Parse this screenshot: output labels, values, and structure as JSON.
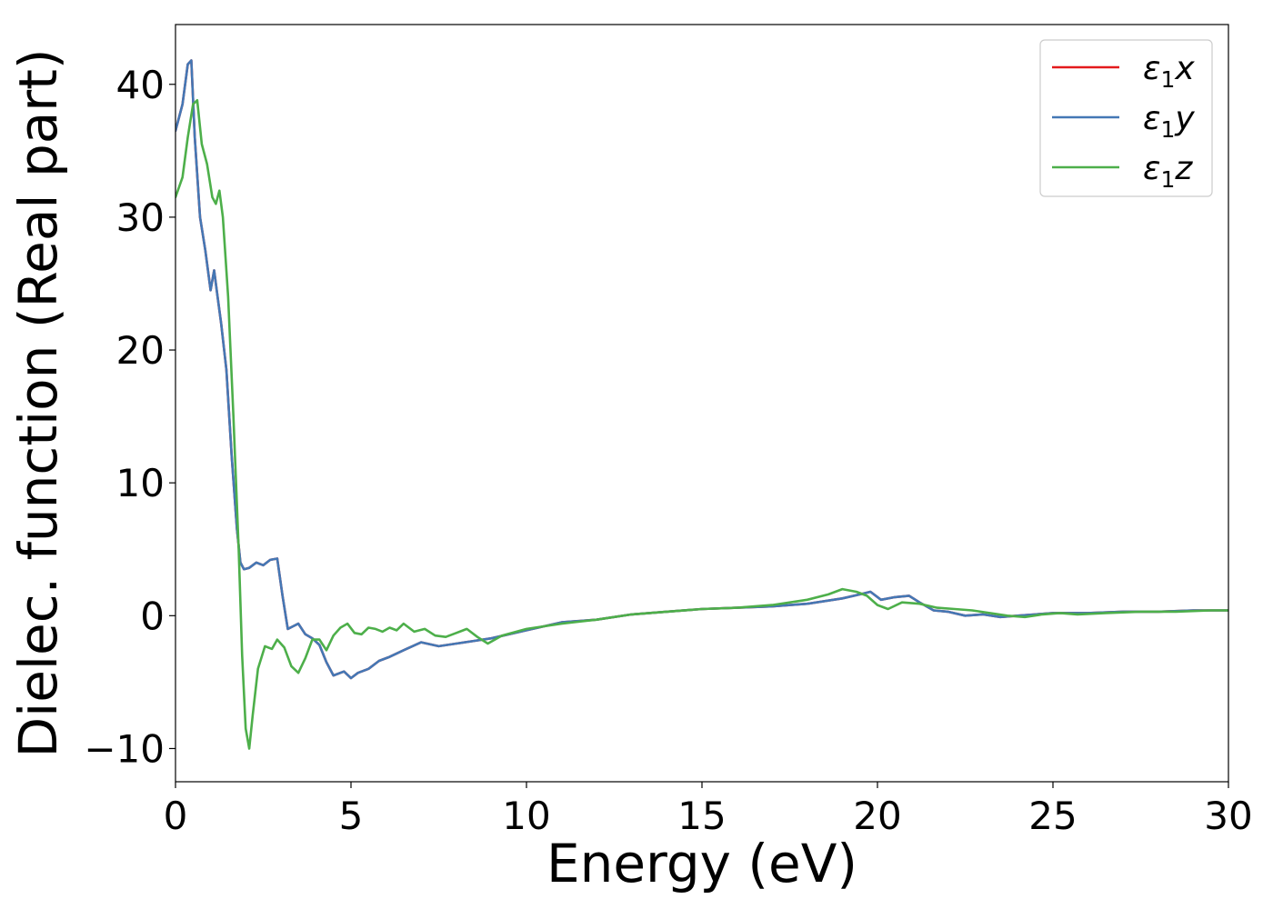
{
  "chart_data": {
    "type": "line",
    "title": "",
    "xlabel": "Energy (eV)",
    "ylabel": "Dielec. function (Real part)",
    "xlim": [
      0,
      30
    ],
    "ylim": [
      -12.5,
      44.5
    ],
    "xticks": [
      0,
      5,
      10,
      15,
      20,
      25,
      30
    ],
    "xtick_labels": [
      "0",
      "5",
      "10",
      "15",
      "20",
      "25",
      "30"
    ],
    "yticks": [
      -10,
      0,
      10,
      20,
      30,
      40
    ],
    "ytick_labels": [
      "−10",
      "0",
      "10",
      "20",
      "30",
      "40"
    ],
    "grid": false,
    "legend_position": "top-right",
    "series": [
      {
        "name": "ε1x",
        "legend_main": "ε",
        "legend_sub": "1",
        "legend_tail": "x",
        "color": "#e41a1c",
        "x": [
          0,
          0.2,
          0.35,
          0.45,
          0.55,
          0.7,
          0.85,
          1.0,
          1.1,
          1.2,
          1.3,
          1.45,
          1.6,
          1.75,
          1.85,
          1.95,
          2.1,
          2.3,
          2.5,
          2.7,
          2.9,
          3.05,
          3.2,
          3.35,
          3.5,
          3.7,
          3.9,
          4.1,
          4.3,
          4.5,
          4.8,
          5.0,
          5.2,
          5.5,
          5.8,
          6.1,
          6.5,
          7.0,
          7.5,
          8.0,
          8.5,
          9.0,
          10.0,
          11.0,
          12.0,
          13.0,
          14.0,
          15.0,
          16.0,
          17.0,
          18.0,
          19.0,
          19.5,
          19.8,
          20.1,
          20.5,
          20.9,
          21.2,
          21.6,
          22.0,
          22.5,
          23.0,
          23.5,
          24.0,
          24.5,
          25.0,
          25.5,
          26.0,
          27.0,
          28.0,
          29.0,
          30.0
        ],
        "y": [
          36.5,
          38.5,
          41.5,
          41.8,
          36.0,
          30.0,
          27.5,
          24.5,
          26.0,
          24.0,
          22.0,
          18.5,
          12.0,
          6.5,
          4.0,
          3.5,
          3.6,
          4.0,
          3.8,
          4.2,
          4.3,
          1.5,
          -1.0,
          -0.8,
          -0.6,
          -1.4,
          -1.7,
          -2.2,
          -3.5,
          -4.5,
          -4.2,
          -4.7,
          -4.3,
          -4.0,
          -3.4,
          -3.1,
          -2.6,
          -2.0,
          -2.3,
          -2.1,
          -1.9,
          -1.7,
          -1.1,
          -0.5,
          -0.3,
          0.1,
          0.3,
          0.5,
          0.6,
          0.7,
          0.9,
          1.3,
          1.6,
          1.8,
          1.2,
          1.4,
          1.5,
          1.0,
          0.4,
          0.3,
          0.0,
          0.1,
          -0.1,
          0.0,
          0.1,
          0.2,
          0.2,
          0.2,
          0.3,
          0.3,
          0.4,
          0.4
        ]
      },
      {
        "name": "ε1y",
        "legend_main": "ε",
        "legend_sub": "1",
        "legend_tail": "y",
        "color": "#4478b5",
        "x": [
          0,
          0.2,
          0.35,
          0.45,
          0.55,
          0.7,
          0.85,
          1.0,
          1.1,
          1.2,
          1.3,
          1.45,
          1.6,
          1.75,
          1.85,
          1.95,
          2.1,
          2.3,
          2.5,
          2.7,
          2.9,
          3.05,
          3.2,
          3.35,
          3.5,
          3.7,
          3.9,
          4.1,
          4.3,
          4.5,
          4.8,
          5.0,
          5.2,
          5.5,
          5.8,
          6.1,
          6.5,
          7.0,
          7.5,
          8.0,
          8.5,
          9.0,
          10.0,
          11.0,
          12.0,
          13.0,
          14.0,
          15.0,
          16.0,
          17.0,
          18.0,
          19.0,
          19.5,
          19.8,
          20.1,
          20.5,
          20.9,
          21.2,
          21.6,
          22.0,
          22.5,
          23.0,
          23.5,
          24.0,
          24.5,
          25.0,
          25.5,
          26.0,
          27.0,
          28.0,
          29.0,
          30.0
        ],
        "y": [
          36.5,
          38.5,
          41.5,
          41.8,
          36.0,
          30.0,
          27.5,
          24.5,
          26.0,
          24.0,
          22.0,
          18.5,
          12.0,
          6.5,
          4.0,
          3.5,
          3.6,
          4.0,
          3.8,
          4.2,
          4.3,
          1.5,
          -1.0,
          -0.8,
          -0.6,
          -1.4,
          -1.7,
          -2.2,
          -3.5,
          -4.5,
          -4.2,
          -4.7,
          -4.3,
          -4.0,
          -3.4,
          -3.1,
          -2.6,
          -2.0,
          -2.3,
          -2.1,
          -1.9,
          -1.7,
          -1.1,
          -0.5,
          -0.3,
          0.1,
          0.3,
          0.5,
          0.6,
          0.7,
          0.9,
          1.3,
          1.6,
          1.8,
          1.2,
          1.4,
          1.5,
          1.0,
          0.4,
          0.3,
          0.0,
          0.1,
          -0.1,
          0.0,
          0.1,
          0.2,
          0.2,
          0.2,
          0.3,
          0.3,
          0.4,
          0.4
        ]
      },
      {
        "name": "ε1z",
        "legend_main": "ε",
        "legend_sub": "1",
        "legend_tail": "z",
        "color": "#4daf4a",
        "x": [
          0,
          0.2,
          0.35,
          0.5,
          0.62,
          0.75,
          0.9,
          1.05,
          1.15,
          1.25,
          1.35,
          1.5,
          1.65,
          1.8,
          1.9,
          2.0,
          2.1,
          2.2,
          2.35,
          2.55,
          2.75,
          2.9,
          3.1,
          3.3,
          3.5,
          3.7,
          3.9,
          4.1,
          4.3,
          4.5,
          4.7,
          4.9,
          5.1,
          5.3,
          5.5,
          5.7,
          5.9,
          6.1,
          6.3,
          6.5,
          6.8,
          7.1,
          7.4,
          7.7,
          8.0,
          8.3,
          8.6,
          8.9,
          9.3,
          10.0,
          11.0,
          12.0,
          13.0,
          14.0,
          15.0,
          16.0,
          17.0,
          18.0,
          18.6,
          19.0,
          19.4,
          19.7,
          20.0,
          20.3,
          20.7,
          21.2,
          21.7,
          22.2,
          22.7,
          23.2,
          23.7,
          24.2,
          24.7,
          25.2,
          25.7,
          26.5,
          27.5,
          28.5,
          29.5,
          30.0
        ],
        "y": [
          31.5,
          33.0,
          36.0,
          38.5,
          38.8,
          35.5,
          34.0,
          31.5,
          31.0,
          32.0,
          30.0,
          24.0,
          15.0,
          5.0,
          -3.0,
          -8.5,
          -10.0,
          -7.5,
          -4.0,
          -2.3,
          -2.5,
          -1.8,
          -2.4,
          -3.8,
          -4.3,
          -3.2,
          -1.8,
          -1.8,
          -2.6,
          -1.5,
          -0.9,
          -0.6,
          -1.3,
          -1.4,
          -0.9,
          -1.0,
          -1.2,
          -0.9,
          -1.1,
          -0.6,
          -1.2,
          -1.0,
          -1.5,
          -1.6,
          -1.3,
          -1.0,
          -1.6,
          -2.1,
          -1.5,
          -1.0,
          -0.6,
          -0.3,
          0.1,
          0.3,
          0.5,
          0.6,
          0.8,
          1.2,
          1.6,
          2.0,
          1.8,
          1.5,
          0.8,
          0.5,
          1.0,
          0.9,
          0.6,
          0.5,
          0.4,
          0.2,
          0.0,
          -0.1,
          0.1,
          0.2,
          0.1,
          0.2,
          0.3,
          0.3,
          0.4,
          0.4
        ]
      }
    ]
  }
}
